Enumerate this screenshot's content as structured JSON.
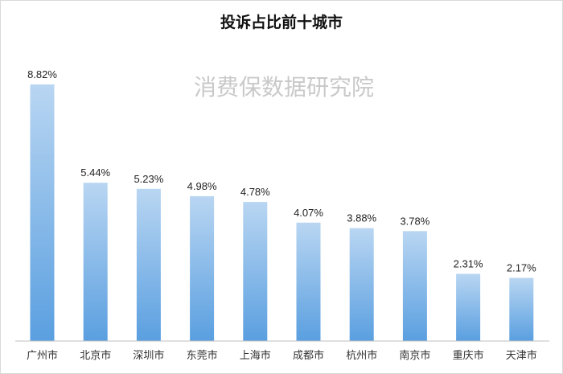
{
  "chart_data": {
    "type": "bar",
    "title": "投诉占比前十城市",
    "watermark": "消费保数据研究院",
    "categories": [
      "广州市",
      "北京市",
      "深圳市",
      "东莞市",
      "上海市",
      "成都市",
      "杭州市",
      "南京市",
      "重庆市",
      "天津市"
    ],
    "values": [
      8.82,
      5.44,
      5.23,
      4.98,
      4.78,
      4.07,
      3.88,
      3.78,
      2.31,
      2.17
    ],
    "data_labels": [
      "8.82%",
      "5.44%",
      "5.23%",
      "4.98%",
      "4.78%",
      "4.07%",
      "3.88%",
      "3.78%",
      "2.31%",
      "2.17%"
    ],
    "unit": "%",
    "xlabel": "",
    "ylabel": "",
    "ylim": [
      0,
      8.82
    ],
    "grid": false,
    "legend": "none",
    "colors": {
      "bar_top": "#b9d6f2",
      "bar_bottom": "#5a9fe0",
      "axis": "#bfbfbf"
    }
  }
}
